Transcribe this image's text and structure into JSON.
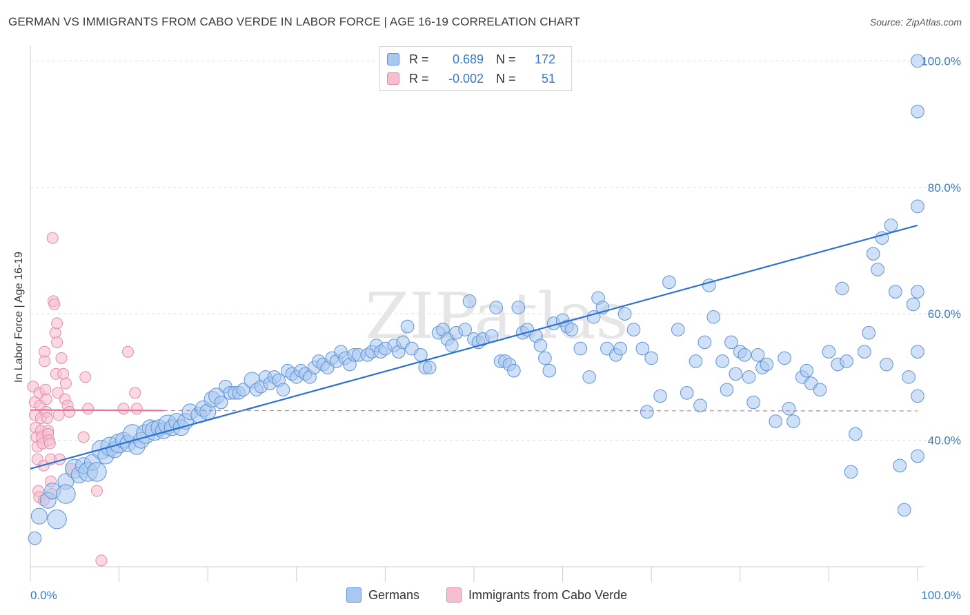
{
  "title": "GERMAN VS IMMIGRANTS FROM CABO VERDE IN LABOR FORCE | AGE 16-19 CORRELATION CHART",
  "source": "Source: ZipAtlas.com",
  "watermark": "ZIPatlas",
  "legend": {
    "rows": [
      {
        "r_label": "R =",
        "r_value": "0.689",
        "n_label": "N =",
        "n_value": "172"
      },
      {
        "r_label": "R =",
        "r_value": "-0.002",
        "n_label": "N =",
        "n_value": "51"
      }
    ]
  },
  "colors": {
    "blue_fill": "#a9c8f0",
    "blue_stroke": "#5b93d9",
    "blue_line": "#2d72d2",
    "pink_fill": "#f6bfd0",
    "pink_stroke": "#e58aa8",
    "pink_line": "#e8729a",
    "tick_text": "#3a78c9",
    "grid": "#dddddd"
  },
  "chart_data": {
    "type": "scatter",
    "title": "GERMAN VS IMMIGRANTS FROM CABO VERDE IN LABOR FORCE | AGE 16-19 CORRELATION CHART",
    "xlabel": "",
    "ylabel": "In Labor Force | Age 16-19",
    "xlim": [
      0,
      100
    ],
    "ylim": [
      20,
      102
    ],
    "x_tick_labels": [
      "0.0%",
      "100.0%"
    ],
    "y_ticks": [
      40,
      60,
      80,
      100
    ],
    "y_tick_labels": [
      "40.0%",
      "60.0%",
      "80.0%",
      "100.0%"
    ],
    "grid": true,
    "legend_position": "top-center",
    "series": [
      {
        "name": "Germans",
        "color": "#a9c8f0",
        "regression": {
          "x": [
            0,
            100
          ],
          "y": [
            35.5,
            74.0
          ]
        },
        "points": [
          [
            0.5,
            24.5,
            4
          ],
          [
            1,
            28,
            5
          ],
          [
            2,
            30.5,
            5
          ],
          [
            2.5,
            32,
            5
          ],
          [
            3,
            27.5,
            6
          ],
          [
            4,
            33.5,
            5
          ],
          [
            4,
            31.5,
            6
          ],
          [
            5,
            35.5,
            6
          ],
          [
            5.5,
            34.5,
            5
          ],
          [
            6,
            36,
            5
          ],
          [
            6.5,
            35,
            6
          ],
          [
            7,
            36.5,
            5
          ],
          [
            7.5,
            35,
            6
          ],
          [
            8,
            38.5,
            6
          ],
          [
            8.5,
            37.5,
            5
          ],
          [
            9,
            39,
            6
          ],
          [
            9.5,
            38.5,
            5
          ],
          [
            10,
            39.5,
            6
          ],
          [
            10.5,
            40,
            5
          ],
          [
            11,
            39.5,
            5
          ],
          [
            11.5,
            41,
            6
          ],
          [
            12,
            39,
            5
          ],
          [
            12.5,
            40,
            5
          ],
          [
            13,
            41,
            6
          ],
          [
            13.5,
            42,
            5
          ],
          [
            14,
            41.5,
            6
          ],
          [
            14.5,
            42,
            5
          ],
          [
            15,
            41.5,
            5
          ],
          [
            15.5,
            42.5,
            6
          ],
          [
            16,
            42,
            5
          ],
          [
            16.5,
            43,
            5
          ],
          [
            17,
            42,
            5
          ],
          [
            17.5,
            43,
            5
          ],
          [
            18,
            44.5,
            5
          ],
          [
            19,
            44,
            5
          ],
          [
            19.5,
            45,
            5
          ],
          [
            20,
            44.5,
            5
          ],
          [
            20.5,
            46.5,
            5
          ],
          [
            21,
            47,
            5
          ],
          [
            21.5,
            46,
            4
          ],
          [
            22,
            48.5,
            4
          ],
          [
            22.5,
            47.5,
            4
          ],
          [
            23,
            47.5,
            4
          ],
          [
            23.5,
            47.5,
            4
          ],
          [
            24,
            48,
            4
          ],
          [
            25,
            49.5,
            5
          ],
          [
            25.5,
            48,
            4
          ],
          [
            26,
            48.5,
            4
          ],
          [
            26.5,
            50,
            4
          ],
          [
            27,
            49,
            4
          ],
          [
            27.5,
            50,
            4
          ],
          [
            28,
            49.5,
            4
          ],
          [
            28.5,
            48,
            4
          ],
          [
            29,
            51,
            4
          ],
          [
            29.5,
            50.5,
            4
          ],
          [
            30,
            50,
            4
          ],
          [
            30.5,
            51,
            4
          ],
          [
            31,
            50.5,
            4
          ],
          [
            31.5,
            50,
            4
          ],
          [
            32,
            51.5,
            4
          ],
          [
            32.5,
            52.5,
            4
          ],
          [
            33,
            52,
            4
          ],
          [
            33.5,
            51.5,
            4
          ],
          [
            34,
            53,
            4
          ],
          [
            34.5,
            52.5,
            4
          ],
          [
            35,
            54,
            4
          ],
          [
            35.5,
            53,
            4
          ],
          [
            36,
            52,
            4
          ],
          [
            36.5,
            53.5,
            4
          ],
          [
            37,
            53.5,
            4
          ],
          [
            38,
            53.5,
            4
          ],
          [
            38.5,
            54,
            4
          ],
          [
            39,
            55,
            4
          ],
          [
            39.5,
            54,
            4
          ],
          [
            40,
            54.5,
            4
          ],
          [
            41,
            55,
            4
          ],
          [
            41.5,
            54,
            4
          ],
          [
            42,
            55.5,
            4
          ],
          [
            42.5,
            58,
            4
          ],
          [
            43,
            54.5,
            4
          ],
          [
            44,
            53.5,
            4
          ],
          [
            44.5,
            51.5,
            4
          ],
          [
            45,
            51.5,
            4
          ],
          [
            46,
            57,
            4
          ],
          [
            46.5,
            57.5,
            4
          ],
          [
            47,
            56,
            4
          ],
          [
            47.5,
            55,
            4
          ],
          [
            48,
            57,
            4
          ],
          [
            49,
            57.5,
            4
          ],
          [
            49.5,
            62,
            4
          ],
          [
            50,
            56,
            4
          ],
          [
            50.5,
            55.5,
            4
          ],
          [
            51,
            56,
            4
          ],
          [
            52,
            56.5,
            4
          ],
          [
            52.5,
            61,
            4
          ],
          [
            53,
            52.5,
            4
          ],
          [
            53.5,
            52.5,
            4
          ],
          [
            54,
            52,
            4
          ],
          [
            54.5,
            51,
            4
          ],
          [
            55,
            61,
            4
          ],
          [
            55.5,
            57,
            4
          ],
          [
            56,
            57.5,
            4
          ],
          [
            57,
            56.5,
            4
          ],
          [
            57.5,
            55,
            4
          ],
          [
            58,
            53,
            4
          ],
          [
            58.5,
            51,
            4
          ],
          [
            59,
            58.5,
            4
          ],
          [
            60,
            59,
            4
          ],
          [
            60.5,
            58,
            4
          ],
          [
            61,
            57.5,
            4
          ],
          [
            62,
            54.5,
            4
          ],
          [
            63,
            50,
            4
          ],
          [
            63.5,
            59.5,
            4
          ],
          [
            64,
            62.5,
            4
          ],
          [
            64.5,
            61,
            4
          ],
          [
            65,
            54.5,
            4
          ],
          [
            66,
            53.5,
            4
          ],
          [
            66.5,
            54.5,
            4
          ],
          [
            67,
            60,
            4
          ],
          [
            68,
            57.5,
            4
          ],
          [
            69,
            54.5,
            4
          ],
          [
            69.5,
            44.5,
            4
          ],
          [
            70,
            53,
            4
          ],
          [
            71,
            47,
            4
          ],
          [
            72,
            65,
            4
          ],
          [
            73,
            57.5,
            4
          ],
          [
            74,
            47.5,
            4
          ],
          [
            75,
            52.5,
            4
          ],
          [
            75.5,
            45.5,
            4
          ],
          [
            76,
            55.5,
            4
          ],
          [
            76.5,
            64.5,
            4
          ],
          [
            77,
            59.5,
            4
          ],
          [
            78,
            52.5,
            4
          ],
          [
            78.5,
            48,
            4
          ],
          [
            79,
            55.5,
            4
          ],
          [
            79.5,
            50.5,
            4
          ],
          [
            80,
            54,
            4
          ],
          [
            80.5,
            53.5,
            4
          ],
          [
            81,
            50,
            4
          ],
          [
            81.5,
            46,
            4
          ],
          [
            82,
            53.5,
            4
          ],
          [
            82.5,
            51.5,
            4
          ],
          [
            83,
            52,
            4
          ],
          [
            84,
            43,
            4
          ],
          [
            85,
            53,
            4
          ],
          [
            85.5,
            45,
            4
          ],
          [
            86,
            43,
            4
          ],
          [
            87,
            50,
            4
          ],
          [
            87.5,
            51,
            4
          ],
          [
            88,
            49,
            4
          ],
          [
            89,
            48,
            4
          ],
          [
            90,
            54,
            4
          ],
          [
            91,
            52,
            4
          ],
          [
            91.5,
            64,
            4
          ],
          [
            92,
            52.5,
            4
          ],
          [
            92.5,
            35,
            4
          ],
          [
            93,
            41,
            4
          ],
          [
            94,
            54,
            4
          ],
          [
            94.5,
            57,
            4
          ],
          [
            95,
            69.5,
            4
          ],
          [
            95.5,
            67,
            4
          ],
          [
            96,
            72,
            4
          ],
          [
            96.5,
            52,
            4
          ],
          [
            97,
            74,
            4
          ],
          [
            97.5,
            63.5,
            4
          ],
          [
            98,
            36,
            4
          ],
          [
            98.5,
            29,
            4
          ],
          [
            99,
            50,
            4
          ],
          [
            99.5,
            61.5,
            4
          ],
          [
            100,
            63.5,
            4
          ],
          [
            100,
            54,
            4
          ],
          [
            100,
            37.5,
            4
          ],
          [
            100,
            47,
            4
          ],
          [
            100,
            77,
            4
          ],
          [
            100,
            100,
            4
          ],
          [
            100,
            92,
            4
          ]
        ]
      },
      {
        "name": "Immigrants from Cabo Verde",
        "color": "#f6bfd0",
        "regression": {
          "x": [
            0,
            15
          ],
          "y": [
            44.8,
            44.7
          ]
        },
        "points": [
          [
            0.3,
            48.5
          ],
          [
            0.5,
            46
          ],
          [
            0.5,
            44
          ],
          [
            0.6,
            42
          ],
          [
            0.7,
            40.5
          ],
          [
            0.8,
            39
          ],
          [
            0.8,
            37
          ],
          [
            0.9,
            32
          ],
          [
            1,
            31
          ],
          [
            1,
            47.5
          ],
          [
            1.1,
            45.5
          ],
          [
            1.2,
            43.5
          ],
          [
            1.2,
            41.5
          ],
          [
            1.3,
            40.5
          ],
          [
            1.4,
            39.5
          ],
          [
            1.5,
            36
          ],
          [
            1.5,
            30.5
          ],
          [
            1.6,
            54
          ],
          [
            1.6,
            52.5
          ],
          [
            1.7,
            48
          ],
          [
            1.8,
            46.5
          ],
          [
            1.8,
            44.5
          ],
          [
            1.9,
            43.5
          ],
          [
            2,
            41.5
          ],
          [
            2,
            41
          ],
          [
            2.1,
            40
          ],
          [
            2.2,
            39.5
          ],
          [
            2.3,
            37
          ],
          [
            2.3,
            33.5
          ],
          [
            2.4,
            31.5
          ],
          [
            2.5,
            72
          ],
          [
            2.6,
            62
          ],
          [
            2.7,
            61.5
          ],
          [
            2.8,
            57
          ],
          [
            2.9,
            50.5
          ],
          [
            3,
            58.5
          ],
          [
            3,
            55.5
          ],
          [
            3.1,
            47.5
          ],
          [
            3.2,
            44
          ],
          [
            3.3,
            37
          ],
          [
            3.5,
            53
          ],
          [
            3.7,
            50.5
          ],
          [
            3.9,
            46.5
          ],
          [
            4,
            49
          ],
          [
            4.2,
            45.5
          ],
          [
            4.4,
            44.5
          ],
          [
            4.6,
            35.5
          ],
          [
            6,
            40.5
          ],
          [
            6.2,
            50
          ],
          [
            6.5,
            45
          ],
          [
            7.5,
            32
          ],
          [
            8,
            21
          ],
          [
            10.5,
            45
          ],
          [
            11,
            54
          ],
          [
            11.8,
            47.5
          ],
          [
            12,
            45
          ]
        ]
      }
    ]
  },
  "bottom_legend": {
    "items": [
      "Germans",
      "Immigrants from Cabo Verde"
    ]
  }
}
